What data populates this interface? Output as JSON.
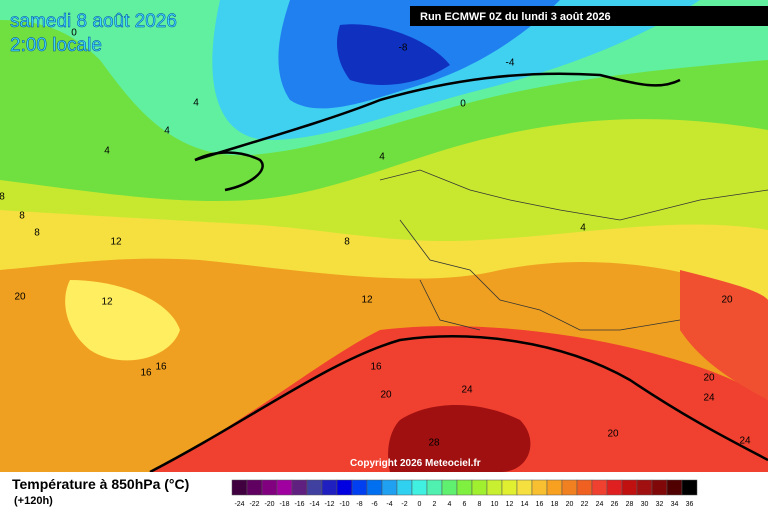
{
  "header": {
    "date": "samedi 8 août 2026",
    "time": "2:00 locale",
    "run": "Run ECMWF 0Z du lundi 3 août 2026"
  },
  "footer": {
    "copyright": "Copyright 2026 Meteociel.fr",
    "legend_title": "Température à 850hPa (°C)",
    "lead": "(+120h)",
    "scale": [
      "-24",
      "-22",
      "-20",
      "-18",
      "-16",
      "-14",
      "-12",
      "-10",
      "-8",
      "-6",
      "-4",
      "-2",
      "0",
      "2",
      "4",
      "6",
      "8",
      "10",
      "12",
      "14",
      "16",
      "18",
      "20",
      "22",
      "24",
      "26",
      "28",
      "30",
      "32",
      "34",
      "36"
    ]
  },
  "map": {
    "contour_labels": [
      "0",
      "-8",
      "-4",
      "0",
      "4",
      "4",
      "4",
      "4",
      "4",
      "8",
      "8",
      "8",
      "8",
      "12",
      "12",
      "12",
      "16",
      "16",
      "16",
      "20",
      "20",
      "20",
      "20",
      "20",
      "24",
      "24",
      "24",
      "28"
    ]
  }
}
